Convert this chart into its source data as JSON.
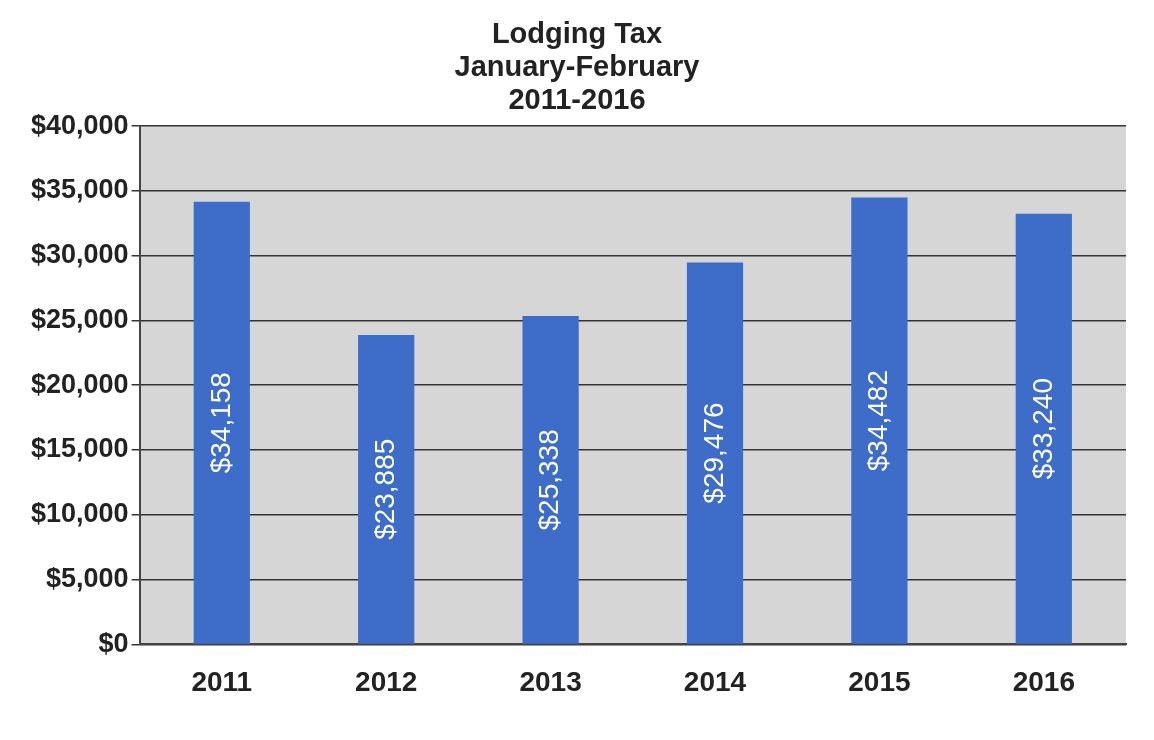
{
  "chart_data": {
    "type": "bar",
    "title": "Lodging Tax\nJanuary-February\n2011-2016",
    "categories": [
      "2011",
      "2012",
      "2013",
      "2014",
      "2015",
      "2016"
    ],
    "values": [
      34158,
      23885,
      25338,
      29476,
      34482,
      33240
    ],
    "value_labels": [
      "$34,158",
      "$23,885",
      "$25,338",
      "$29,476",
      "$34,482",
      "$33,240"
    ],
    "color": "#3d6cc9",
    "ylim": [
      0,
      40000
    ],
    "yticks": [
      {
        "value": 0,
        "label": "$0"
      },
      {
        "value": 5000,
        "label": "$5,000"
      },
      {
        "value": 10000,
        "label": "$10,000"
      },
      {
        "value": 15000,
        "label": "$15,000"
      },
      {
        "value": 20000,
        "label": "$20,000"
      },
      {
        "value": 25000,
        "label": "$25,000"
      },
      {
        "value": 30000,
        "label": "$30,000"
      },
      {
        "value": 35000,
        "label": "$35,000"
      },
      {
        "value": 40000,
        "label": "$40,000"
      }
    ],
    "grid": "y",
    "legend": false
  }
}
